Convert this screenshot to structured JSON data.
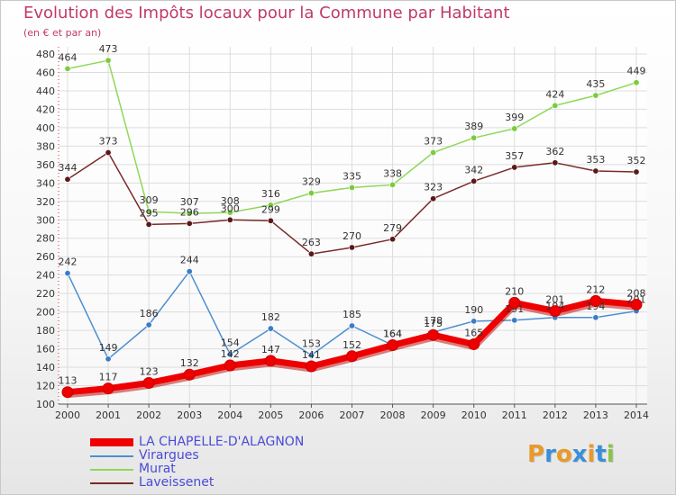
{
  "page": {
    "title": "Evolution des Impôts locaux pour la Commune par Habitant",
    "subtitle": "(en € et par an)"
  },
  "logo": {
    "letters": [
      "P",
      "r",
      "o",
      "x",
      "i",
      "t",
      "i"
    ]
  },
  "colors": {
    "title": "#c03a6a",
    "axis_text": "#333333",
    "grid": "#dddddd",
    "axis_dots": "#cc3333",
    "legend_text": "#4a4ad8",
    "logo": [
      "#e89a2a",
      "#3a8fd8",
      "#e89a2a",
      "#3a8fd8",
      "#e89a2a",
      "#3a8fd8",
      "#8bc34a"
    ]
  },
  "chart_data": {
    "type": "line",
    "title": "Evolution des Impôts locaux pour la Commune par Habitant",
    "subtitle": "(en € et par an)",
    "x": [
      "2000",
      "2001",
      "2002",
      "2003",
      "2004",
      "2005",
      "2006",
      "2007",
      "2008",
      "2009",
      "2010",
      "2011",
      "2012",
      "2013",
      "2014"
    ],
    "yticks": [
      100,
      120,
      140,
      160,
      180,
      200,
      220,
      240,
      260,
      280,
      300,
      320,
      340,
      360,
      380,
      400,
      420,
      440,
      460,
      480
    ],
    "ylim": [
      100,
      480
    ],
    "grid": true,
    "legend_position": "bottom-left",
    "series": [
      {
        "name": "LA CHAPELLE-D'ALAGNON",
        "color": "#ee0000",
        "marker_color": "#ee0000",
        "values": [
          113,
          117,
          123,
          132,
          142,
          147,
          141,
          152,
          164,
          175,
          165,
          210,
          201,
          212,
          208
        ],
        "labels": [
          "113",
          "117",
          "123",
          "132",
          "142",
          "147",
          "141",
          "152",
          "164",
          "175",
          "165",
          "210",
          "201",
          "212",
          "208"
        ],
        "emphasis": true
      },
      {
        "name": "Virargues",
        "color": "#4d8fd0",
        "marker_color": "#3b7cc8",
        "values": [
          242,
          149,
          186,
          244,
          154,
          182,
          153,
          185,
          164,
          178,
          190,
          191,
          194,
          194,
          201
        ],
        "labels": [
          "242",
          "149",
          "186",
          "244",
          "154",
          "182",
          "153",
          "185",
          "164",
          "178",
          "190",
          "191",
          "194",
          "194",
          "201"
        ]
      },
      {
        "name": "Murat",
        "color": "#8fd85a",
        "marker_color": "#7acc3c",
        "values": [
          464,
          473,
          309,
          307,
          308,
          316,
          329,
          335,
          338,
          373,
          389,
          399,
          424,
          435,
          449
        ],
        "labels": [
          "464",
          "473",
          "309",
          "307",
          "308",
          "316",
          "329",
          "335",
          "338",
          "373",
          "389",
          "399",
          "424",
          "435",
          "449"
        ]
      },
      {
        "name": "Laveissenet",
        "color": "#7a2a2a",
        "marker_color": "#5a1818",
        "values": [
          344,
          373,
          295,
          296,
          300,
          299,
          263,
          270,
          279,
          323,
          342,
          357,
          362,
          353,
          352
        ],
        "labels": [
          "344",
          "373",
          "295",
          "296",
          "300",
          "299",
          "263",
          "270",
          "279",
          "323",
          "342",
          "357",
          "362",
          "353",
          "352"
        ]
      }
    ]
  }
}
